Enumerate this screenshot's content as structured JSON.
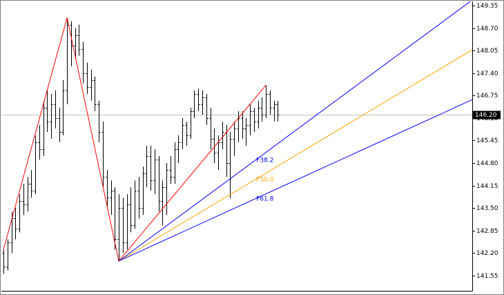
{
  "chart_data": {
    "type": "ohlc",
    "color": "#000000",
    "open": [
      142.2,
      141.8,
      142.5,
      143.2,
      142.9,
      143.7,
      143.6,
      144.2,
      144.0,
      145.4,
      145.2,
      146.4,
      146.0,
      146.5,
      146.1,
      145.7,
      146.9,
      148.8,
      148.2,
      148.5,
      148.1,
      147.4,
      147.0,
      147.2,
      146.5,
      145.7,
      144.4,
      143.8,
      144.0,
      142.6,
      143.5,
      142.5,
      143.6,
      143.0,
      144.0,
      143.5,
      144.5,
      145.0,
      144.3,
      144.9,
      143.7,
      144.1,
      144.6,
      144.4,
      145.2,
      145.4,
      145.9,
      145.6,
      146.3,
      146.8,
      146.5,
      146.7,
      146.1,
      145.5,
      145.1,
      145.4,
      145.7,
      144.8,
      145.5,
      145.8,
      146.1,
      145.8,
      145.9,
      146.3,
      146.0,
      146.4,
      146.2,
      146.8,
      146.4,
      146.5
    ],
    "high": [
      142.3,
      142.6,
      143.4,
      143.5,
      143.9,
      144.2,
      144.4,
      144.6,
      145.6,
      145.9,
      146.6,
      146.9,
      146.8,
      146.9,
      146.4,
      147.2,
      149.0,
      148.9,
      148.7,
      148.8,
      148.3,
      147.7,
      147.5,
      147.3,
      146.6,
      146.0,
      144.6,
      144.3,
      144.1,
      143.9,
      143.8,
      143.9,
      144.1,
      144.3,
      144.4,
      144.7,
      145.3,
      145.3,
      145.2,
      145.0,
      144.3,
      144.8,
      145.0,
      145.4,
      145.6,
      146.1,
      146.0,
      146.4,
      146.9,
      146.95,
      146.9,
      146.8,
      146.4,
      145.8,
      145.6,
      146.0,
      145.9,
      145.7,
      146.0,
      146.3,
      146.3,
      146.1,
      146.5,
      146.4,
      146.6,
      146.7,
      147.05,
      146.9,
      146.6,
      146.6
    ],
    "low": [
      141.6,
      141.7,
      142.2,
      142.6,
      142.8,
      143.3,
      143.4,
      143.8,
      143.9,
      144.9,
      145.0,
      145.7,
      145.5,
      145.8,
      145.4,
      145.6,
      146.5,
      147.6,
      147.8,
      147.9,
      147.1,
      146.8,
      146.6,
      146.3,
      145.4,
      144.1,
      143.5,
      143.3,
      142.3,
      141.97,
      142.2,
      142.3,
      142.8,
      142.9,
      143.2,
      143.3,
      144.1,
      144.0,
      143.9,
      143.4,
      143.0,
      143.3,
      144.2,
      144.2,
      144.8,
      145.2,
      145.3,
      145.5,
      146.1,
      146.3,
      146.2,
      145.9,
      145.2,
      144.8,
      144.6,
      145.2,
      144.4,
      143.78,
      145.0,
      145.4,
      145.5,
      145.3,
      145.6,
      145.7,
      145.8,
      146.0,
      146.1,
      146.2,
      146.0,
      146.0
    ],
    "close": [
      141.8,
      142.5,
      143.2,
      142.9,
      143.7,
      143.6,
      144.2,
      144.0,
      145.4,
      145.2,
      146.4,
      146.0,
      146.5,
      146.1,
      145.7,
      146.9,
      148.8,
      148.2,
      148.5,
      148.1,
      147.4,
      147.0,
      147.2,
      146.5,
      145.7,
      144.4,
      143.8,
      144.0,
      142.6,
      143.5,
      142.5,
      143.6,
      143.0,
      144.0,
      143.5,
      144.5,
      145.0,
      144.3,
      144.9,
      143.7,
      144.1,
      144.6,
      144.4,
      145.2,
      145.4,
      145.9,
      145.6,
      146.3,
      146.8,
      146.5,
      146.7,
      146.1,
      145.5,
      145.1,
      145.4,
      145.7,
      144.8,
      145.5,
      145.8,
      146.1,
      145.8,
      145.9,
      146.3,
      146.0,
      146.4,
      146.2,
      146.8,
      146.4,
      146.5,
      146.2
    ],
    "ylim": [
      141.11,
      149.47
    ],
    "yticks": [
      {
        "value": 149.35,
        "label": "149.35"
      },
      {
        "value": 148.7,
        "label": "148.70"
      },
      {
        "value": 148.05,
        "label": "148.05"
      },
      {
        "value": 147.4,
        "label": "147.40"
      },
      {
        "value": 146.75,
        "label": "146.75"
      },
      {
        "value": 146.1,
        "label": "146.10"
      },
      {
        "value": 145.45,
        "label": "145.45"
      },
      {
        "value": 144.8,
        "label": "144.80"
      },
      {
        "value": 144.15,
        "label": "144.15"
      },
      {
        "value": 143.5,
        "label": "143.50"
      },
      {
        "value": 142.85,
        "label": "142.85"
      },
      {
        "value": 142.2,
        "label": "142.20"
      },
      {
        "value": 141.55,
        "label": "141.55"
      }
    ],
    "grid": false,
    "last_price": {
      "value": 146.2,
      "label": "146.20",
      "color": "#c0c0c0"
    },
    "zigzag": {
      "color": "#ff0000",
      "points": [
        {
          "bar": 0,
          "price": 142.3
        },
        {
          "bar": 16,
          "price": 149.0
        },
        {
          "bar": 29,
          "price": 141.97
        },
        {
          "bar": 66,
          "price": 147.05
        }
      ]
    },
    "fan": {
      "from": {
        "bar": 29,
        "price": 141.97
      },
      "to": {
        "bar": 66,
        "price": 147.05
      },
      "levels": [
        {
          "value": 38.2,
          "label": "F38.2",
          "color": "#0000ff"
        },
        {
          "value": 50.0,
          "label": "F50.0",
          "color": "#ffa500"
        },
        {
          "value": 61.8,
          "label": "F61.8",
          "color": "#0000ff"
        }
      ]
    }
  }
}
